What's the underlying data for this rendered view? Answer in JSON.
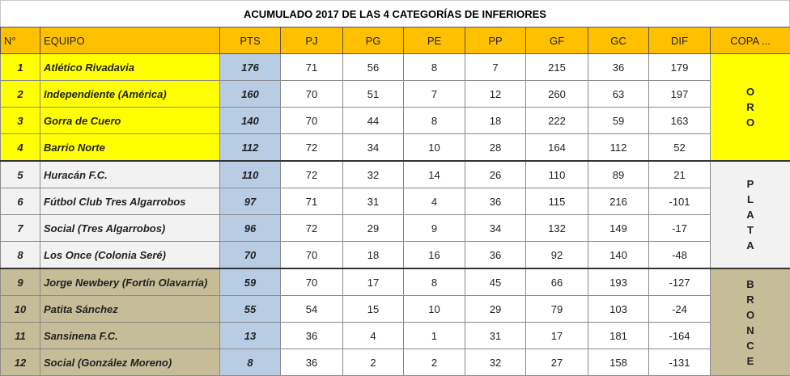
{
  "title": "ACUMULADO 2017 DE LAS 4 CATEGORÍAS DE INFERIORES",
  "headers": [
    "N°",
    "EQUIPO",
    "PTS",
    "PJ",
    "PG",
    "PE",
    "PP",
    "GF",
    "GC",
    "DIF",
    "COPA ..."
  ],
  "rows": [
    [
      "1",
      "Atlético Rivadavia",
      "176",
      "71",
      "56",
      "8",
      "7",
      "215",
      "36",
      "179"
    ],
    [
      "2",
      "Independiente (América)",
      "160",
      "70",
      "51",
      "7",
      "12",
      "260",
      "63",
      "197"
    ],
    [
      "3",
      "Gorra de Cuero",
      "140",
      "70",
      "44",
      "8",
      "18",
      "222",
      "59",
      "163"
    ],
    [
      "4",
      "Barrio Norte",
      "112",
      "72",
      "34",
      "10",
      "28",
      "164",
      "112",
      "52"
    ],
    [
      "5",
      "Huracán F.C.",
      "110",
      "72",
      "32",
      "14",
      "26",
      "110",
      "89",
      "21"
    ],
    [
      "6",
      "Fútbol Club Tres Algarrobos",
      "97",
      "71",
      "31",
      "4",
      "36",
      "115",
      "216",
      "-101"
    ],
    [
      "7",
      "Social (Tres Algarrobos)",
      "96",
      "72",
      "29",
      "9",
      "34",
      "132",
      "149",
      "-17"
    ],
    [
      "8",
      "Los Once (Colonia Seré)",
      "70",
      "70",
      "18",
      "16",
      "36",
      "92",
      "140",
      "-48"
    ],
    [
      "9",
      "Jorge Newbery (Fortín Olavarría)",
      "59",
      "70",
      "17",
      "8",
      "45",
      "66",
      "193",
      "-127"
    ],
    [
      "10",
      "Patita Sánchez",
      "55",
      "54",
      "15",
      "10",
      "29",
      "79",
      "103",
      "-24"
    ],
    [
      "11",
      "Sansinena F.C.",
      "13",
      "36",
      "4",
      "1",
      "31",
      "17",
      "181",
      "-164"
    ],
    [
      "12",
      "Social (González Moreno)",
      "8",
      "36",
      "2",
      "2",
      "32",
      "27",
      "158",
      "-131"
    ]
  ],
  "copas": [
    {
      "letters": [
        "O",
        "R",
        "O"
      ],
      "color": "#ffff00"
    },
    {
      "letters": [
        "P",
        "L",
        "A",
        "T",
        "A"
      ],
      "color": "#f2f2f2"
    },
    {
      "letters": [
        "B",
        "R",
        "O",
        "N",
        "C",
        "E"
      ],
      "color": "#c4bd97"
    }
  ],
  "colors": {
    "header": "#ffc000",
    "pts": "#b8cce4",
    "oro": "#ffff00",
    "plata": "#f2f2f2",
    "bronce": "#c4bd97"
  }
}
